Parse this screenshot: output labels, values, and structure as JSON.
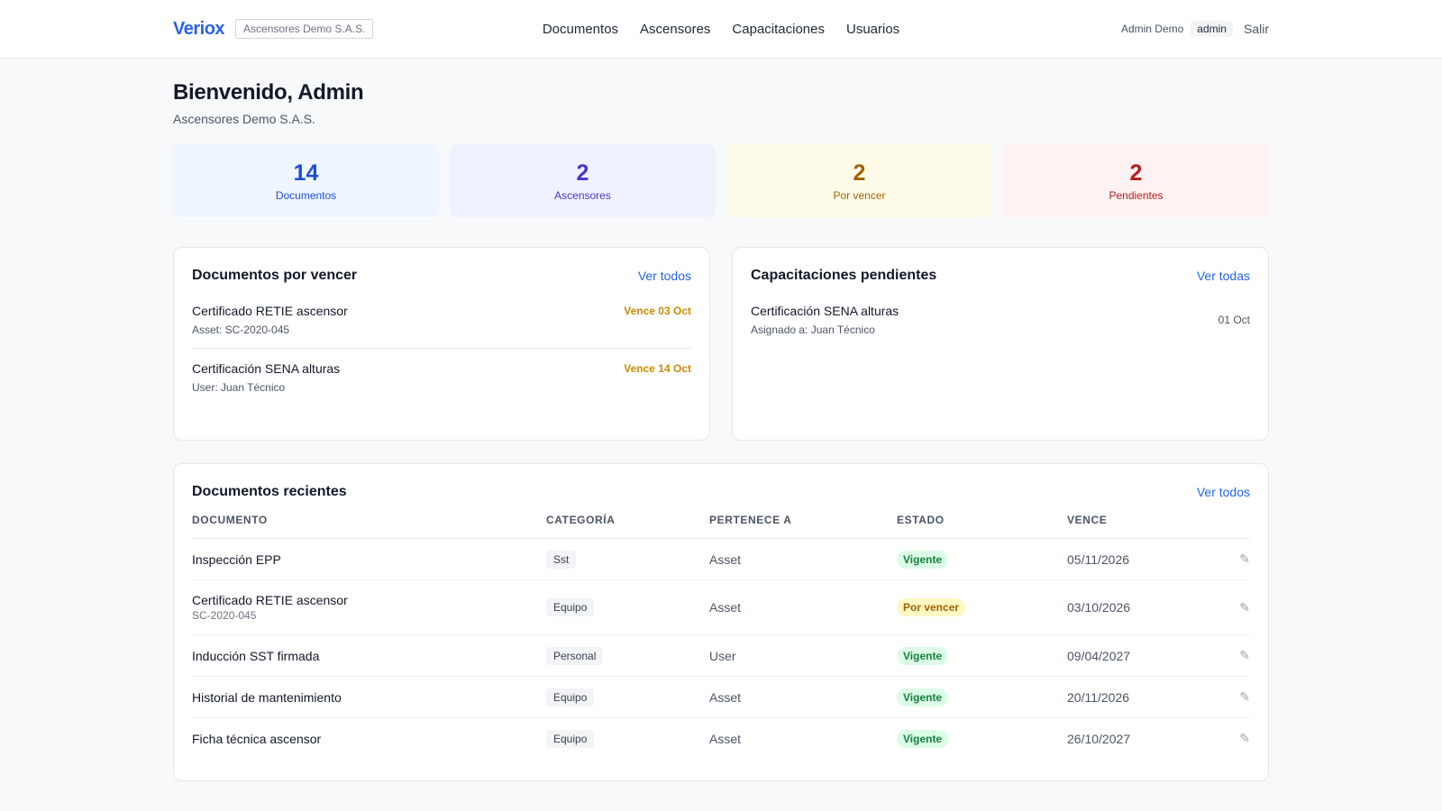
{
  "header": {
    "logo": "Veriox",
    "organization": "Ascensores Demo S.A.S.",
    "nav": [
      "Documentos",
      "Ascensores",
      "Capacitaciones",
      "Usuarios"
    ],
    "user_name": "Admin Demo",
    "role": "admin",
    "logout": "Salir"
  },
  "welcome": {
    "title": "Bienvenido, Admin",
    "company": "Ascensores Demo S.A.S."
  },
  "stats": [
    {
      "value": "14",
      "label": "Documentos"
    },
    {
      "value": "2",
      "label": "Ascensores"
    },
    {
      "value": "2",
      "label": "Por vencer"
    },
    {
      "value": "2",
      "label": "Pendientes"
    }
  ],
  "expiring": {
    "title": "Documentos por vencer",
    "link": "Ver todos",
    "items": [
      {
        "title": "Certificado RETIE ascensor",
        "sub": "Asset: SC-2020-045",
        "due": "Vence 03 Oct"
      },
      {
        "title": "Certificación SENA alturas",
        "sub": "User: Juan Técnico",
        "due": "Vence 14 Oct"
      }
    ]
  },
  "trainings": {
    "title": "Capacitaciones pendientes",
    "link": "Ver todas",
    "items": [
      {
        "title": "Certificación SENA alturas",
        "sub": "Asignado a: Juan Técnico",
        "date": "01 Oct"
      }
    ]
  },
  "recent": {
    "title": "Documentos recientes",
    "link": "Ver todos",
    "columns": [
      "DOCUMENTO",
      "CATEGORÍA",
      "PERTENECE A",
      "ESTADO",
      "VENCE"
    ],
    "rows": [
      {
        "name": "Inspección EPP",
        "sub": "",
        "category": "Sst",
        "owner": "Asset",
        "status": "Vigente",
        "expires": "05/11/2026"
      },
      {
        "name": "Certificado RETIE ascensor",
        "sub": "SC-2020-045",
        "category": "Equipo",
        "owner": "Asset",
        "status": "Por vencer",
        "expires": "03/10/2026"
      },
      {
        "name": "Inducción SST firmada",
        "sub": "",
        "category": "Personal",
        "owner": "User",
        "status": "Vigente",
        "expires": "09/04/2027"
      },
      {
        "name": "Historial de mantenimiento",
        "sub": "",
        "category": "Equipo",
        "owner": "Asset",
        "status": "Vigente",
        "expires": "20/11/2026"
      },
      {
        "name": "Ficha técnica ascensor",
        "sub": "",
        "category": "Equipo",
        "owner": "Asset",
        "status": "Vigente",
        "expires": "26/10/2027"
      }
    ],
    "edit_icon": "pencil-icon"
  },
  "colors": {
    "accent": "#2563eb",
    "status_ok": "#15803d",
    "status_warning": "#a16207",
    "status_danger": "#b91c1c"
  }
}
